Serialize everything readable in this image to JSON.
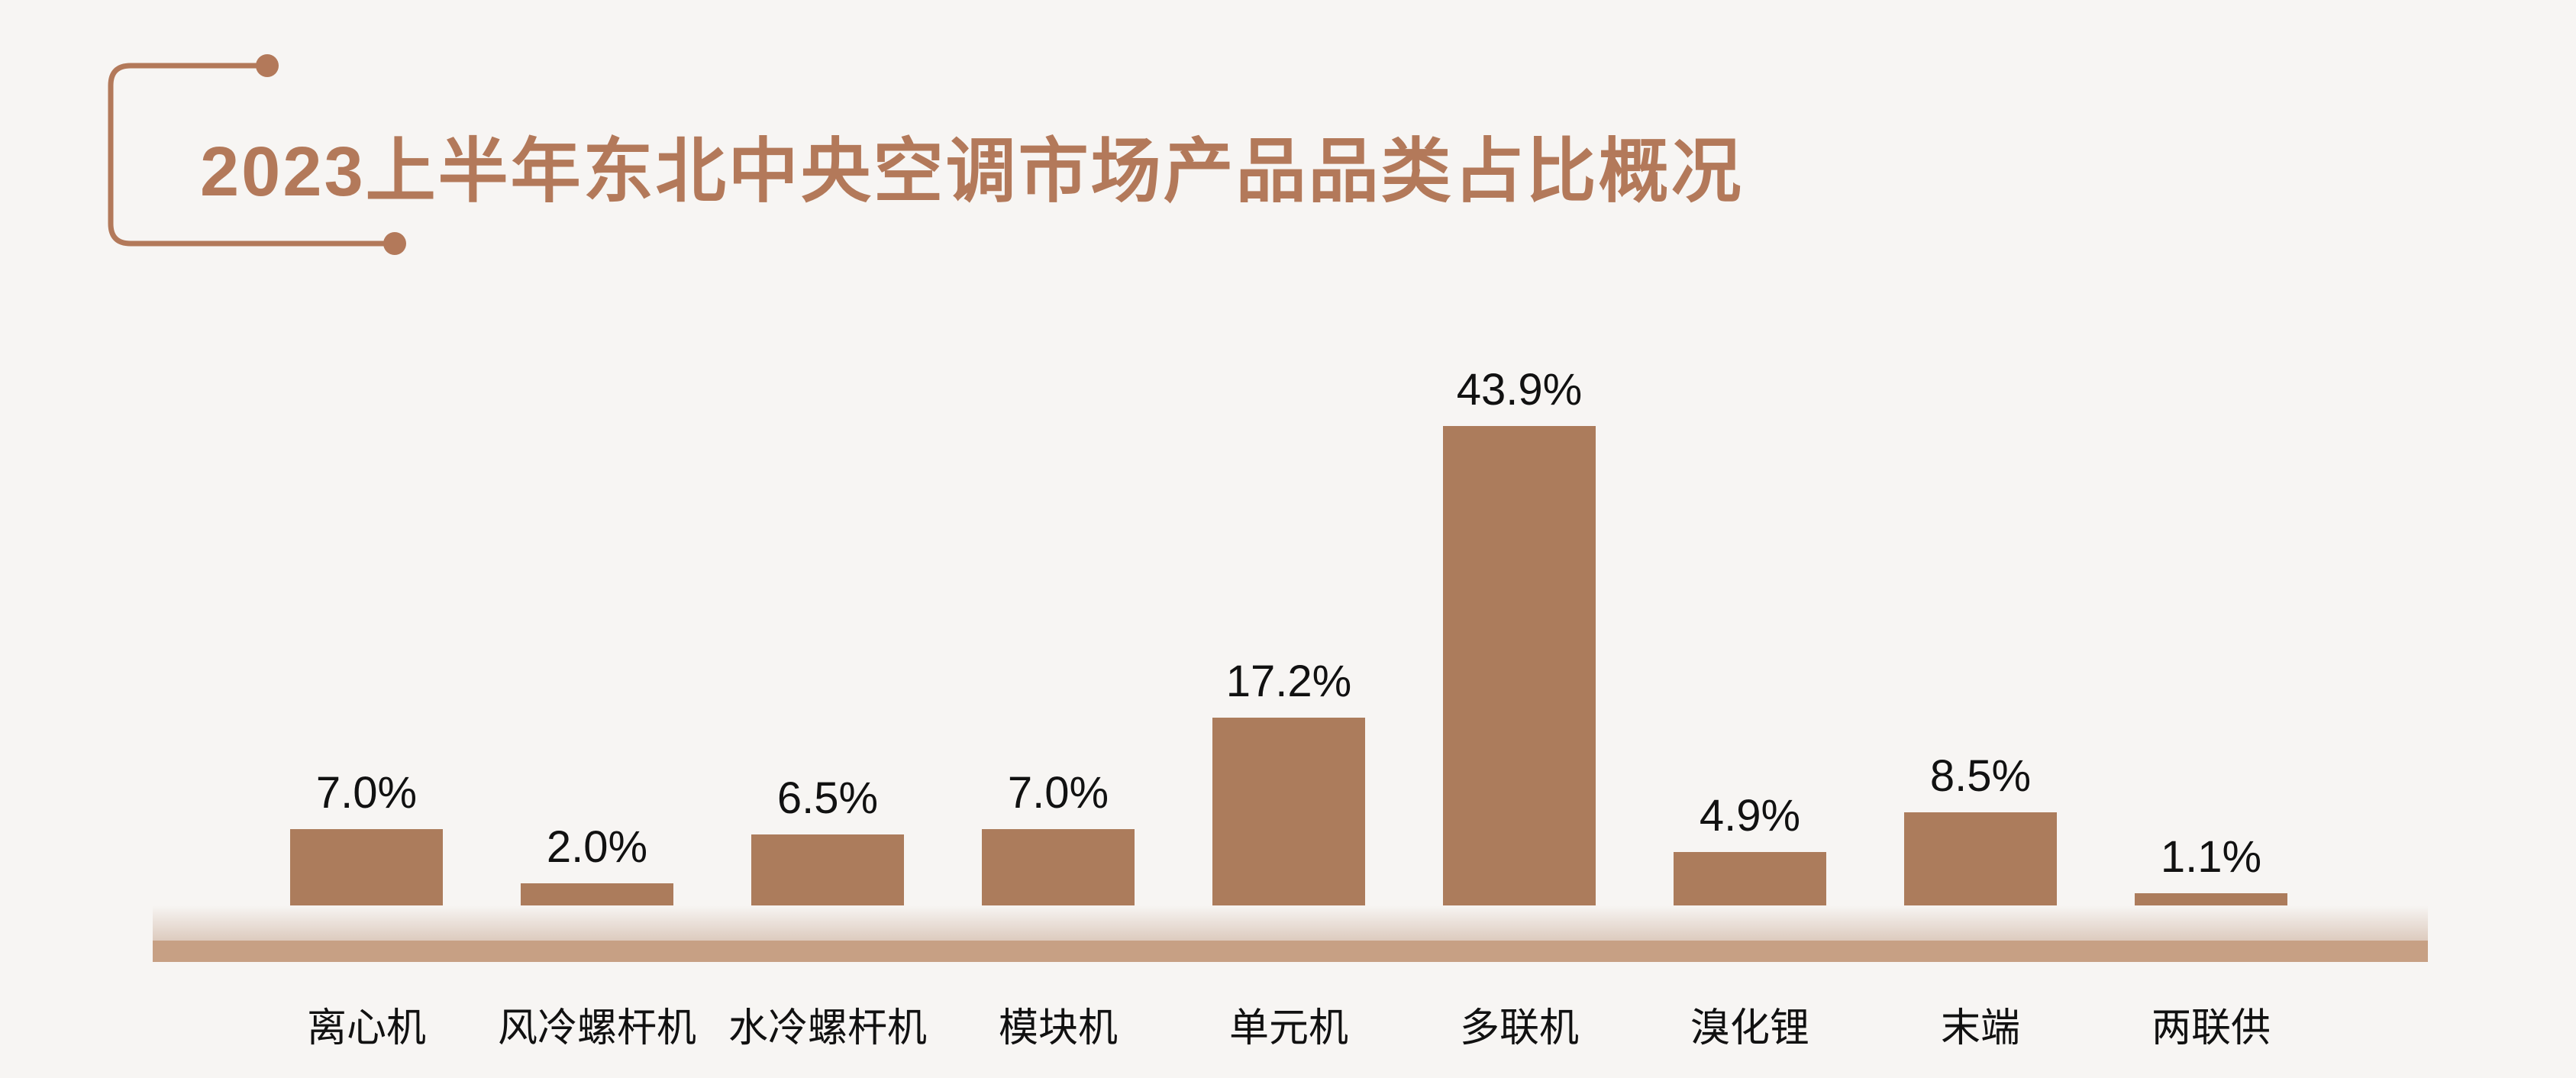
{
  "chart_data": {
    "type": "bar",
    "title": "2023上半年东北中央空调市场产品品类占比概况",
    "categories": [
      "离心机",
      "风冷螺杆机",
      "水冷螺杆机",
      "模块机",
      "单元机",
      "多联机",
      "溴化锂",
      "末端",
      "两联供"
    ],
    "values": [
      7.0,
      2.0,
      6.5,
      7.0,
      17.2,
      43.9,
      4.9,
      8.5,
      1.1
    ],
    "value_labels": [
      "7.0%",
      "2.0%",
      "6.5%",
      "7.0%",
      "17.2%",
      "43.9%",
      "4.9%",
      "8.5%",
      "1.1%"
    ],
    "xlabel": "",
    "ylabel": "",
    "ylim": [
      0,
      45
    ],
    "grid": false,
    "legend": null,
    "bar_color": "#ac7c5c"
  },
  "colors": {
    "background": "#f7f5f3",
    "accent_brown": "#b3795a",
    "bar_brown": "#ac7c5c",
    "floor_strip": "#c7a084",
    "label_text": "#111111"
  }
}
